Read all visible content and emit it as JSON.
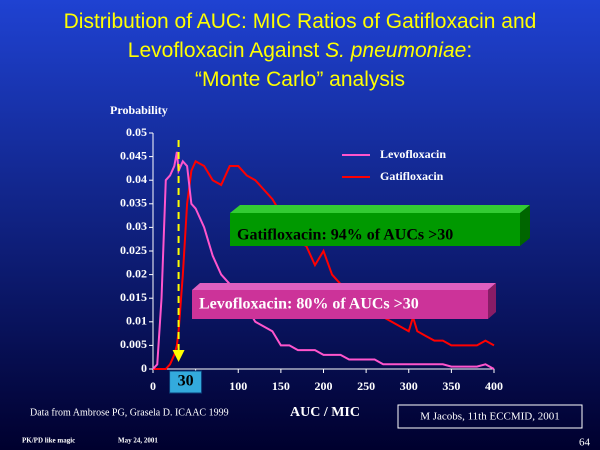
{
  "chart_data": {
    "type": "line",
    "title": [
      [
        "Distribution of AUC: MIC Ratios of Gatifloxacin and"
      ],
      [
        "Levofloxacin Against ",
        {
          "text": "S. pneumoniae",
          "italic": true
        },
        ":"
      ],
      [
        "“Monte Carlo” analysis"
      ]
    ],
    "y_label": "Probability",
    "x_label": "AUC / MIC",
    "x": [
      0,
      5,
      10,
      15,
      20,
      25,
      28,
      30,
      35,
      40,
      45,
      50,
      60,
      70,
      80,
      90,
      100,
      110,
      120,
      130,
      140,
      150,
      160,
      170,
      180,
      190,
      200,
      210,
      220,
      230,
      240,
      250,
      260,
      270,
      280,
      290,
      300,
      305,
      310,
      320,
      330,
      340,
      350,
      360,
      370,
      380,
      390,
      400
    ],
    "series": [
      {
        "name": "Levofloxacin",
        "color": "#ff55cc",
        "values": [
          0,
          0.001,
          0.015,
          0.04,
          0.041,
          0.043,
          0.046,
          0.042,
          0.044,
          0.043,
          0.035,
          0.034,
          0.03,
          0.024,
          0.02,
          0.018,
          0.016,
          0.013,
          0.01,
          0.009,
          0.008,
          0.005,
          0.005,
          0.004,
          0.004,
          0.004,
          0.003,
          0.003,
          0.003,
          0.002,
          0.002,
          0.002,
          0.002,
          0.001,
          0.001,
          0.001,
          0.001,
          0.001,
          0.001,
          0.001,
          0.001,
          0.001,
          0.0005,
          0.0005,
          0.0005,
          0.0005,
          0.001,
          0
        ]
      },
      {
        "name": "Gatifloxacin",
        "color": "#ff0000",
        "values": [
          0,
          0,
          0,
          0,
          0.001,
          0.003,
          0.005,
          0.008,
          0.02,
          0.035,
          0.042,
          0.044,
          0.043,
          0.04,
          0.039,
          0.043,
          0.043,
          0.041,
          0.04,
          0.038,
          0.036,
          0.033,
          0.03,
          0.027,
          0.026,
          0.022,
          0.025,
          0.02,
          0.018,
          0.017,
          0.016,
          0.015,
          0.013,
          0.011,
          0.01,
          0.009,
          0.008,
          0.011,
          0.008,
          0.007,
          0.006,
          0.006,
          0.005,
          0.005,
          0.005,
          0.005,
          0.006,
          0.005
        ]
      }
    ],
    "xlim": [
      0,
      400
    ],
    "xticks": [
      0,
      50,
      100,
      150,
      200,
      250,
      300,
      350,
      400
    ],
    "ylim": [
      0,
      0.05
    ],
    "yticks": [
      0,
      0.005,
      0.01,
      0.015,
      0.02,
      0.025,
      0.03,
      0.035,
      0.04,
      0.045,
      0.05
    ],
    "threshold": 30,
    "annotations": [
      "Gatifloxacin: 94% of AUCs >30",
      "Levofloxacin: 80% of AUCs >30"
    ]
  },
  "slide": {
    "source": "Data from Ambrose PG, Grasela D. ICAAC 1999",
    "credit": "M Jacobs, 11th ECCMID, 2001",
    "footer_left": "PK/PD like magic",
    "footer_date": "May 24, 2001",
    "page_number": "64"
  }
}
